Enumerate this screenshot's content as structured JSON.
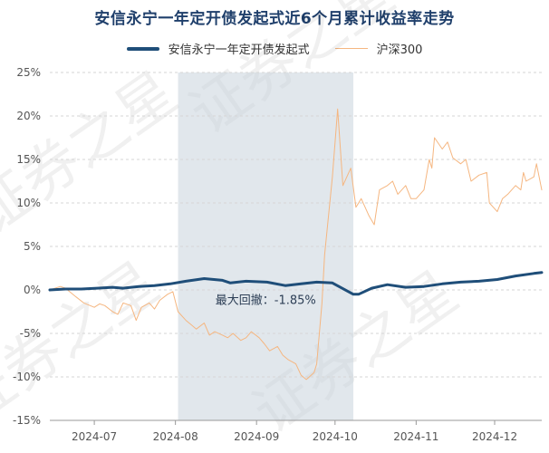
{
  "chart_data": {
    "type": "line",
    "title": "安信永宁一年定开债发起式近6个月累计收益率走势",
    "ylim": [
      -15,
      25
    ],
    "ytick_labels": [
      "25%",
      "20%",
      "15%",
      "10%",
      "5%",
      "0%",
      "-5%",
      "-10%",
      "-15%"
    ],
    "yticks": [
      25,
      20,
      15,
      10,
      5,
      0,
      -5,
      -10,
      -15
    ],
    "xtick_labels": [
      "2024-07",
      "2024-08",
      "2024-09",
      "2024-10",
      "2024-11",
      "2024-12"
    ],
    "x_start": "2024-06-14",
    "x_end": "2024-12-19",
    "xtick_positions": [
      "2024-07-01",
      "2024-08-01",
      "2024-09-01",
      "2024-10-01",
      "2024-11-01",
      "2024-12-01"
    ],
    "grid": "horizontal dashed",
    "legend_position": "top-center",
    "drawdown": {
      "label": "最大回撤：-1.85%",
      "start": "2024-08-02",
      "end": "2024-10-08"
    },
    "watermark": "证券之星",
    "series": [
      {
        "name": "安信永宁一年定开债发起式",
        "color": "#1f4e79",
        "line_width": 3,
        "points": [
          [
            "2024-06-14",
            0.0
          ],
          [
            "2024-06-20",
            0.1
          ],
          [
            "2024-06-26",
            0.1
          ],
          [
            "2024-07-02",
            0.2
          ],
          [
            "2024-07-08",
            0.3
          ],
          [
            "2024-07-12",
            0.2
          ],
          [
            "2024-07-18",
            0.4
          ],
          [
            "2024-07-24",
            0.5
          ],
          [
            "2024-07-30",
            0.7
          ],
          [
            "2024-08-05",
            1.0
          ],
          [
            "2024-08-12",
            1.3
          ],
          [
            "2024-08-19",
            1.1
          ],
          [
            "2024-08-22",
            0.8
          ],
          [
            "2024-08-28",
            1.0
          ],
          [
            "2024-09-05",
            0.9
          ],
          [
            "2024-09-12",
            0.5
          ],
          [
            "2024-09-18",
            0.7
          ],
          [
            "2024-09-24",
            0.9
          ],
          [
            "2024-09-30",
            0.8
          ],
          [
            "2024-10-08",
            -0.5
          ],
          [
            "2024-10-10",
            -0.5
          ],
          [
            "2024-10-15",
            0.2
          ],
          [
            "2024-10-21",
            0.6
          ],
          [
            "2024-10-28",
            0.3
          ],
          [
            "2024-11-04",
            0.4
          ],
          [
            "2024-11-11",
            0.7
          ],
          [
            "2024-11-18",
            0.9
          ],
          [
            "2024-11-25",
            1.0
          ],
          [
            "2024-12-02",
            1.2
          ],
          [
            "2024-12-09",
            1.6
          ],
          [
            "2024-12-16",
            1.9
          ],
          [
            "2024-12-19",
            2.0
          ]
        ]
      },
      {
        "name": "沪深300",
        "color": "#f5b680",
        "line_width": 1,
        "points": [
          [
            "2024-06-14",
            0.0
          ],
          [
            "2024-06-18",
            0.4
          ],
          [
            "2024-06-20",
            0.2
          ],
          [
            "2024-06-24",
            -0.8
          ],
          [
            "2024-06-27",
            -1.5
          ],
          [
            "2024-07-01",
            -2.0
          ],
          [
            "2024-07-03",
            -1.6
          ],
          [
            "2024-07-05",
            -1.8
          ],
          [
            "2024-07-08",
            -2.5
          ],
          [
            "2024-07-10",
            -2.8
          ],
          [
            "2024-07-12",
            -1.5
          ],
          [
            "2024-07-15",
            -1.8
          ],
          [
            "2024-07-17",
            -3.5
          ],
          [
            "2024-07-19",
            -2.0
          ],
          [
            "2024-07-22",
            -1.5
          ],
          [
            "2024-07-24",
            -2.2
          ],
          [
            "2024-07-26",
            -1.2
          ],
          [
            "2024-07-29",
            -0.5
          ],
          [
            "2024-07-31",
            -0.2
          ],
          [
            "2024-08-02",
            -2.5
          ],
          [
            "2024-08-05",
            -3.5
          ],
          [
            "2024-08-07",
            -4.0
          ],
          [
            "2024-08-09",
            -4.5
          ],
          [
            "2024-08-12",
            -3.8
          ],
          [
            "2024-08-14",
            -5.2
          ],
          [
            "2024-08-16",
            -4.8
          ],
          [
            "2024-08-19",
            -5.2
          ],
          [
            "2024-08-21",
            -5.5
          ],
          [
            "2024-08-23",
            -5.0
          ],
          [
            "2024-08-26",
            -5.8
          ],
          [
            "2024-08-28",
            -5.5
          ],
          [
            "2024-08-30",
            -4.8
          ],
          [
            "2024-09-02",
            -5.5
          ],
          [
            "2024-09-04",
            -6.2
          ],
          [
            "2024-09-06",
            -7.0
          ],
          [
            "2024-09-09",
            -6.5
          ],
          [
            "2024-09-11",
            -7.5
          ],
          [
            "2024-09-13",
            -8.0
          ],
          [
            "2024-09-16",
            -8.5
          ],
          [
            "2024-09-18",
            -9.8
          ],
          [
            "2024-09-20",
            -10.3
          ],
          [
            "2024-09-23",
            -9.5
          ],
          [
            "2024-09-24",
            -8.5
          ],
          [
            "2024-09-25",
            -5.0
          ],
          [
            "2024-09-26",
            -1.5
          ],
          [
            "2024-09-27",
            4.0
          ],
          [
            "2024-09-30",
            13.0
          ],
          [
            "2024-10-02",
            20.8
          ],
          [
            "2024-10-04",
            12.0
          ],
          [
            "2024-10-07",
            14.0
          ],
          [
            "2024-10-09",
            9.5
          ],
          [
            "2024-10-11",
            10.5
          ],
          [
            "2024-10-14",
            8.5
          ],
          [
            "2024-10-16",
            7.5
          ],
          [
            "2024-10-18",
            11.5
          ],
          [
            "2024-10-21",
            12.0
          ],
          [
            "2024-10-23",
            12.5
          ],
          [
            "2024-10-25",
            11.0
          ],
          [
            "2024-10-28",
            12.0
          ],
          [
            "2024-10-30",
            10.5
          ],
          [
            "2024-11-01",
            10.5
          ],
          [
            "2024-11-04",
            11.5
          ],
          [
            "2024-11-06",
            15.0
          ],
          [
            "2024-11-07",
            14.0
          ],
          [
            "2024-11-08",
            17.5
          ],
          [
            "2024-11-11",
            16.2
          ],
          [
            "2024-11-13",
            17.0
          ],
          [
            "2024-11-15",
            15.2
          ],
          [
            "2024-11-18",
            14.5
          ],
          [
            "2024-11-20",
            15.0
          ],
          [
            "2024-11-22",
            12.5
          ],
          [
            "2024-11-25",
            13.2
          ],
          [
            "2024-11-28",
            13.5
          ],
          [
            "2024-11-29",
            10.0
          ],
          [
            "2024-12-02",
            9.0
          ],
          [
            "2024-12-04",
            10.5
          ],
          [
            "2024-12-06",
            11.0
          ],
          [
            "2024-12-09",
            12.0
          ],
          [
            "2024-12-11",
            11.5
          ],
          [
            "2024-12-12",
            13.5
          ],
          [
            "2024-12-13",
            12.5
          ],
          [
            "2024-12-16",
            13.0
          ],
          [
            "2024-12-17",
            14.5
          ],
          [
            "2024-12-19",
            11.5
          ]
        ]
      }
    ]
  }
}
